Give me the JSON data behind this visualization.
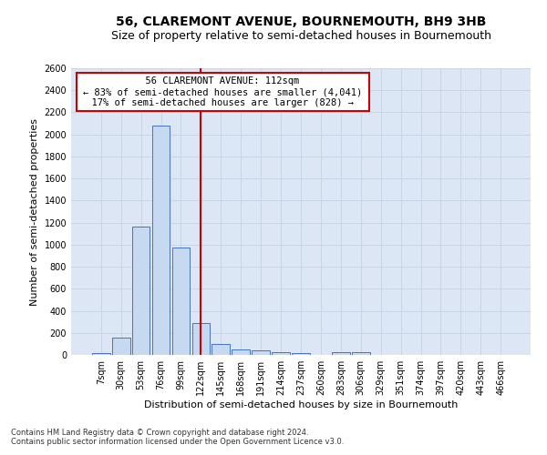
{
  "title": "56, CLAREMONT AVENUE, BOURNEMOUTH, BH9 3HB",
  "subtitle": "Size of property relative to semi-detached houses in Bournemouth",
  "xlabel": "Distribution of semi-detached houses by size in Bournemouth",
  "ylabel": "Number of semi-detached properties",
  "footnote1": "Contains HM Land Registry data © Crown copyright and database right 2024.",
  "footnote2": "Contains public sector information licensed under the Open Government Licence v3.0.",
  "bar_labels": [
    "7sqm",
    "30sqm",
    "53sqm",
    "76sqm",
    "99sqm",
    "122sqm",
    "145sqm",
    "168sqm",
    "191sqm",
    "214sqm",
    "237sqm",
    "260sqm",
    "283sqm",
    "306sqm",
    "329sqm",
    "351sqm",
    "374sqm",
    "397sqm",
    "420sqm",
    "443sqm",
    "466sqm"
  ],
  "bar_values": [
    20,
    160,
    1160,
    2080,
    975,
    285,
    100,
    48,
    38,
    28,
    20,
    0,
    22,
    22,
    0,
    0,
    0,
    0,
    0,
    0,
    0
  ],
  "bar_color": "#c6d9f0",
  "bar_edge_color": "#4472c4",
  "annotation_title": "56 CLAREMONT AVENUE: 112sqm",
  "annotation_line1": "← 83% of semi-detached houses are smaller (4,041)",
  "annotation_line2": "17% of semi-detached houses are larger (828) →",
  "annotation_box_color": "#ffffff",
  "annotation_box_edge": "#cc0000",
  "vline_color": "#cc0000",
  "ylim": [
    0,
    2600
  ],
  "yticks": [
    0,
    200,
    400,
    600,
    800,
    1000,
    1200,
    1400,
    1600,
    1800,
    2000,
    2200,
    2400,
    2600
  ],
  "grid_color": "#c8d4e8",
  "background_color": "#dce6f5",
  "title_fontsize": 10,
  "subtitle_fontsize": 9,
  "ylabel_fontsize": 8,
  "xlabel_fontsize": 8,
  "tick_fontsize": 7,
  "footnote_fontsize": 6
}
